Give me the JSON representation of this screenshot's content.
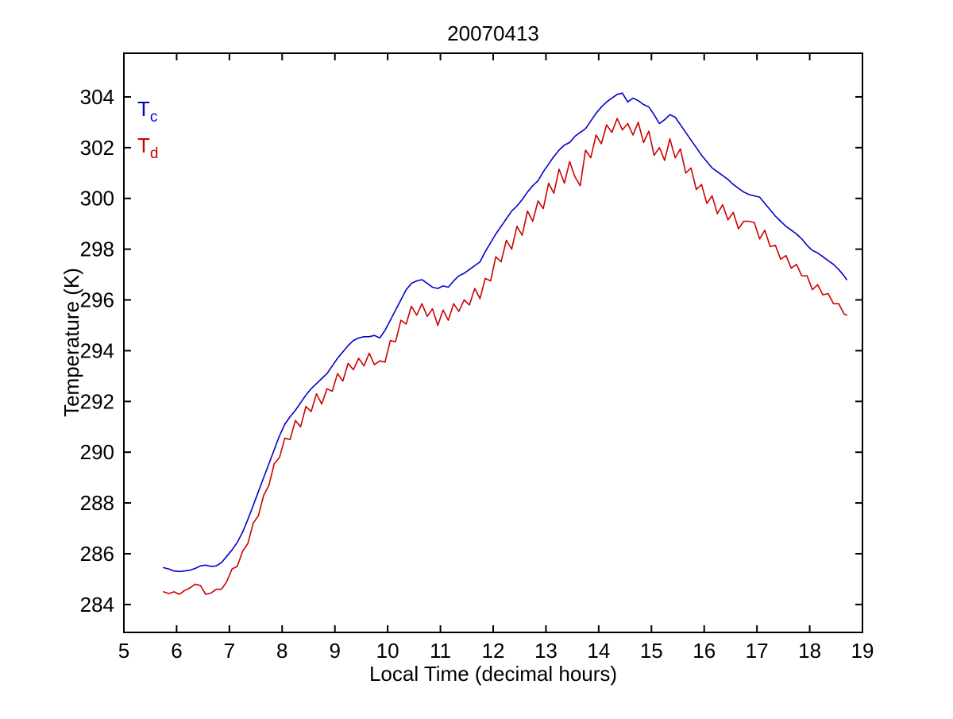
{
  "window": {
    "background": "#ffffff",
    "text_color": "#000000"
  },
  "chart_data": {
    "type": "line",
    "title": "20070413",
    "xlabel": "Local Time (decimal hours)",
    "ylabel": "Temperature (K)",
    "xlim": [
      5,
      19
    ],
    "ylim": [
      282.9,
      305.72
    ],
    "xticks": [
      5,
      6,
      7,
      8,
      9,
      10,
      11,
      12,
      13,
      14,
      15,
      16,
      17,
      18,
      19
    ],
    "yticks": [
      284,
      286,
      288,
      290,
      292,
      294,
      296,
      298,
      300,
      302,
      304
    ],
    "grid": false,
    "box": true,
    "tick_direction": "in",
    "legend": {
      "position": "top-left-inside",
      "entries": [
        {
          "label": "T",
          "subscript": "c",
          "color": "#0000cc"
        },
        {
          "label": "T",
          "subscript": "d",
          "color": "#cc0000"
        }
      ]
    },
    "x": [
      5.75,
      5.85,
      5.95,
      6.05,
      6.15,
      6.25,
      6.35,
      6.45,
      6.55,
      6.65,
      6.75,
      6.85,
      6.95,
      7.05,
      7.15,
      7.25,
      7.35,
      7.45,
      7.55,
      7.65,
      7.75,
      7.85,
      7.95,
      8.05,
      8.15,
      8.25,
      8.35,
      8.45,
      8.55,
      8.65,
      8.75,
      8.85,
      8.95,
      9.05,
      9.15,
      9.25,
      9.35,
      9.45,
      9.55,
      9.65,
      9.75,
      9.85,
      9.95,
      10.05,
      10.15,
      10.25,
      10.35,
      10.45,
      10.55,
      10.65,
      10.75,
      10.85,
      10.95,
      11.05,
      11.15,
      11.25,
      11.35,
      11.45,
      11.55,
      11.65,
      11.75,
      11.85,
      11.95,
      12.05,
      12.15,
      12.25,
      12.35,
      12.45,
      12.55,
      12.65,
      12.75,
      12.85,
      12.95,
      13.05,
      13.15,
      13.25,
      13.35,
      13.45,
      13.55,
      13.65,
      13.75,
      13.85,
      13.95,
      14.05,
      14.15,
      14.25,
      14.35,
      14.45,
      14.55,
      14.65,
      14.75,
      14.85,
      14.95,
      15.05,
      15.15,
      15.25,
      15.35,
      15.45,
      15.55,
      15.65,
      15.75,
      15.85,
      15.95,
      16.05,
      16.15,
      16.25,
      16.35,
      16.45,
      16.55,
      16.65,
      16.75,
      16.85,
      16.95,
      17.05,
      17.15,
      17.25,
      17.35,
      17.45,
      17.55,
      17.65,
      17.75,
      17.85,
      17.95,
      18.05,
      18.15,
      18.25,
      18.35,
      18.45,
      18.55,
      18.65,
      18.7
    ],
    "series": [
      {
        "name": "Tc",
        "color": "#0000cc",
        "values": [
          285.45,
          285.4,
          285.32,
          285.3,
          285.32,
          285.35,
          285.42,
          285.52,
          285.55,
          285.5,
          285.52,
          285.65,
          285.9,
          286.15,
          286.45,
          286.85,
          287.35,
          287.9,
          288.45,
          289.0,
          289.55,
          290.1,
          290.65,
          291.1,
          291.4,
          291.65,
          291.95,
          292.25,
          292.5,
          292.7,
          292.9,
          293.1,
          293.4,
          293.7,
          293.95,
          294.2,
          294.4,
          294.5,
          294.55,
          294.55,
          294.6,
          294.5,
          294.8,
          295.2,
          295.6,
          296.0,
          296.4,
          296.65,
          296.75,
          296.8,
          296.65,
          296.5,
          296.45,
          296.55,
          296.5,
          296.75,
          296.95,
          297.05,
          297.2,
          297.35,
          297.5,
          297.9,
          298.25,
          298.6,
          298.9,
          299.2,
          299.5,
          299.7,
          299.95,
          300.25,
          300.5,
          300.7,
          301.05,
          301.35,
          301.65,
          301.9,
          302.1,
          302.2,
          302.45,
          302.6,
          302.75,
          303.05,
          303.35,
          303.6,
          303.8,
          303.95,
          304.1,
          304.15,
          303.8,
          303.95,
          303.85,
          303.7,
          303.6,
          303.3,
          302.95,
          303.1,
          303.3,
          303.2,
          302.9,
          302.6,
          302.3,
          302.0,
          301.7,
          301.45,
          301.2,
          301.05,
          300.9,
          300.75,
          300.55,
          300.4,
          300.25,
          300.15,
          300.1,
          300.05,
          299.8,
          299.55,
          299.3,
          299.1,
          298.9,
          298.75,
          298.6,
          298.4,
          298.15,
          297.95,
          297.85,
          297.7,
          297.55,
          297.4,
          297.2,
          296.95,
          296.8
        ]
      },
      {
        "name": "Td",
        "color": "#cc0000",
        "values": [
          284.5,
          284.43,
          284.5,
          284.4,
          284.55,
          284.65,
          284.8,
          284.75,
          284.4,
          284.45,
          284.6,
          284.6,
          284.9,
          285.4,
          285.5,
          286.1,
          286.4,
          287.2,
          287.5,
          288.3,
          288.7,
          289.55,
          289.8,
          290.55,
          290.5,
          291.25,
          291.0,
          291.8,
          291.6,
          292.3,
          291.9,
          292.5,
          292.4,
          293.1,
          292.8,
          293.5,
          293.25,
          293.7,
          293.4,
          293.9,
          293.45,
          293.6,
          293.55,
          294.4,
          294.35,
          295.2,
          295.05,
          295.75,
          295.4,
          295.85,
          295.35,
          295.65,
          295.0,
          295.6,
          295.2,
          295.85,
          295.55,
          296.0,
          295.8,
          296.45,
          296.05,
          296.85,
          296.75,
          297.7,
          297.5,
          298.35,
          298.0,
          298.9,
          298.55,
          299.5,
          299.1,
          299.9,
          299.6,
          300.6,
          300.2,
          301.15,
          300.6,
          301.45,
          300.85,
          300.5,
          301.9,
          301.6,
          302.5,
          302.15,
          302.9,
          302.6,
          303.15,
          302.7,
          302.95,
          302.5,
          303.0,
          302.2,
          302.65,
          301.7,
          302.0,
          301.5,
          302.35,
          301.6,
          301.95,
          301.0,
          301.2,
          300.35,
          300.55,
          299.8,
          300.1,
          299.4,
          299.75,
          299.15,
          299.45,
          298.8,
          299.1,
          299.1,
          299.05,
          298.4,
          298.75,
          298.1,
          298.15,
          297.6,
          297.75,
          297.25,
          297.4,
          296.95,
          296.95,
          296.4,
          296.6,
          296.2,
          296.25,
          295.85,
          295.85,
          295.45,
          295.4
        ]
      }
    ]
  }
}
